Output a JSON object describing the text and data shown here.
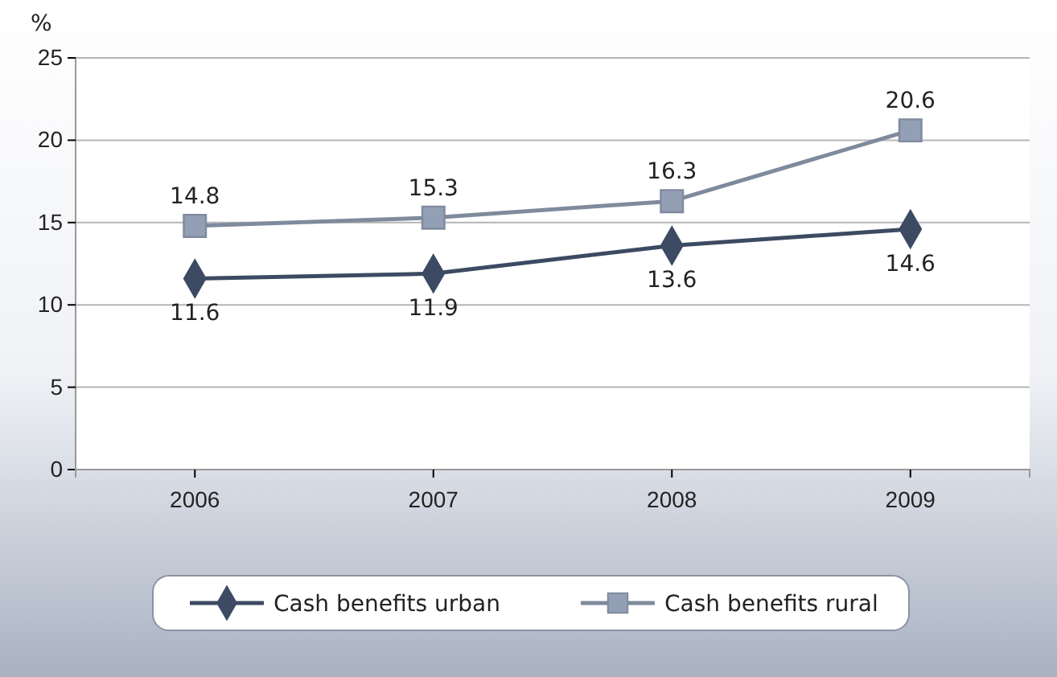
{
  "chart_data": {
    "type": "line",
    "ylabel": "%",
    "categories": [
      "2006",
      "2007",
      "2008",
      "2009"
    ],
    "series": [
      {
        "name": "Cash benefits urban",
        "color": "#3d4a63",
        "marker": "diamond",
        "values": [
          11.6,
          11.9,
          13.6,
          14.6
        ]
      },
      {
        "name": "Cash benefits rural",
        "color": "#7f8a9d",
        "marker": "square",
        "values": [
          14.8,
          15.3,
          16.3,
          20.6
        ]
      }
    ],
    "ylim": [
      0,
      25
    ],
    "yticks": [
      0,
      5,
      10,
      15,
      20,
      25
    ],
    "grid": "y",
    "data_labels": true,
    "legend": "bottom"
  }
}
